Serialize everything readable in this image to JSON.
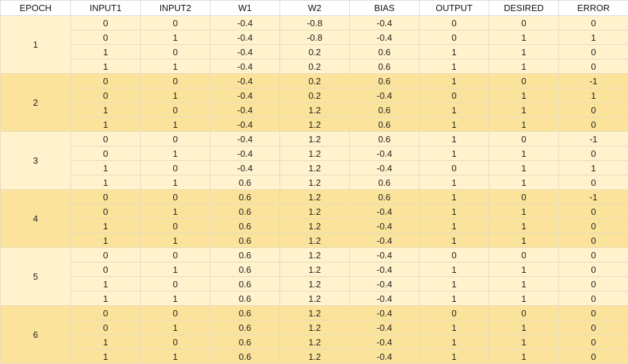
{
  "headers": [
    "EPOCH",
    "INPUT1",
    "INPUT2",
    "W1",
    "W2",
    "BIAS",
    "OUTPUT",
    "DESIRED",
    "ERROR"
  ],
  "colors": {
    "light_band": "#fff2cc",
    "dark_band": "#fce39b",
    "header_bg": "#ffffff",
    "grid": "#e4dcc0"
  },
  "epochs": [
    {
      "epoch": "1",
      "rows": [
        [
          "0",
          "0",
          "-0.4",
          "-0.8",
          "-0.4",
          "0",
          "0",
          "0"
        ],
        [
          "0",
          "1",
          "-0.4",
          "-0.8",
          "-0.4",
          "0",
          "1",
          "1"
        ],
        [
          "1",
          "0",
          "-0.4",
          "0.2",
          "0.6",
          "1",
          "1",
          "0"
        ],
        [
          "1",
          "1",
          "-0.4",
          "0.2",
          "0.6",
          "1",
          "1",
          "0"
        ]
      ]
    },
    {
      "epoch": "2",
      "rows": [
        [
          "0",
          "0",
          "-0.4",
          "0.2",
          "0.6",
          "1",
          "0",
          "-1"
        ],
        [
          "0",
          "1",
          "-0.4",
          "0.2",
          "-0.4",
          "0",
          "1",
          "1"
        ],
        [
          "1",
          "0",
          "-0.4",
          "1.2",
          "0.6",
          "1",
          "1",
          "0"
        ],
        [
          "1",
          "1",
          "-0.4",
          "1.2",
          "0.6",
          "1",
          "1",
          "0"
        ]
      ]
    },
    {
      "epoch": "3",
      "rows": [
        [
          "0",
          "0",
          "-0.4",
          "1.2",
          "0.6",
          "1",
          "0",
          "-1"
        ],
        [
          "0",
          "1",
          "-0.4",
          "1.2",
          "-0.4",
          "1",
          "1",
          "0"
        ],
        [
          "1",
          "0",
          "-0.4",
          "1.2",
          "-0.4",
          "0",
          "1",
          "1"
        ],
        [
          "1",
          "1",
          "0.6",
          "1.2",
          "0.6",
          "1",
          "1",
          "0"
        ]
      ]
    },
    {
      "epoch": "4",
      "rows": [
        [
          "0",
          "0",
          "0.6",
          "1.2",
          "0.6",
          "1",
          "0",
          "-1"
        ],
        [
          "0",
          "1",
          "0.6",
          "1.2",
          "-0.4",
          "1",
          "1",
          "0"
        ],
        [
          "1",
          "0",
          "0.6",
          "1.2",
          "-0.4",
          "1",
          "1",
          "0"
        ],
        [
          "1",
          "1",
          "0.6",
          "1.2",
          "-0.4",
          "1",
          "1",
          "0"
        ]
      ]
    },
    {
      "epoch": "5",
      "rows": [
        [
          "0",
          "0",
          "0.6",
          "1.2",
          "-0.4",
          "0",
          "0",
          "0"
        ],
        [
          "0",
          "1",
          "0.6",
          "1.2",
          "-0.4",
          "1",
          "1",
          "0"
        ],
        [
          "1",
          "0",
          "0.6",
          "1.2",
          "-0.4",
          "1",
          "1",
          "0"
        ],
        [
          "1",
          "1",
          "0.6",
          "1.2",
          "-0.4",
          "1",
          "1",
          "0"
        ]
      ]
    },
    {
      "epoch": "6",
      "rows": [
        [
          "0",
          "0",
          "0.6",
          "1.2",
          "-0.4",
          "0",
          "0",
          "0"
        ],
        [
          "0",
          "1",
          "0.6",
          "1.2",
          "-0.4",
          "1",
          "1",
          "0"
        ],
        [
          "1",
          "0",
          "0.6",
          "1.2",
          "-0.4",
          "1",
          "1",
          "0"
        ],
        [
          "1",
          "1",
          "0.6",
          "1.2",
          "-0.4",
          "1",
          "1",
          "0"
        ]
      ]
    }
  ]
}
